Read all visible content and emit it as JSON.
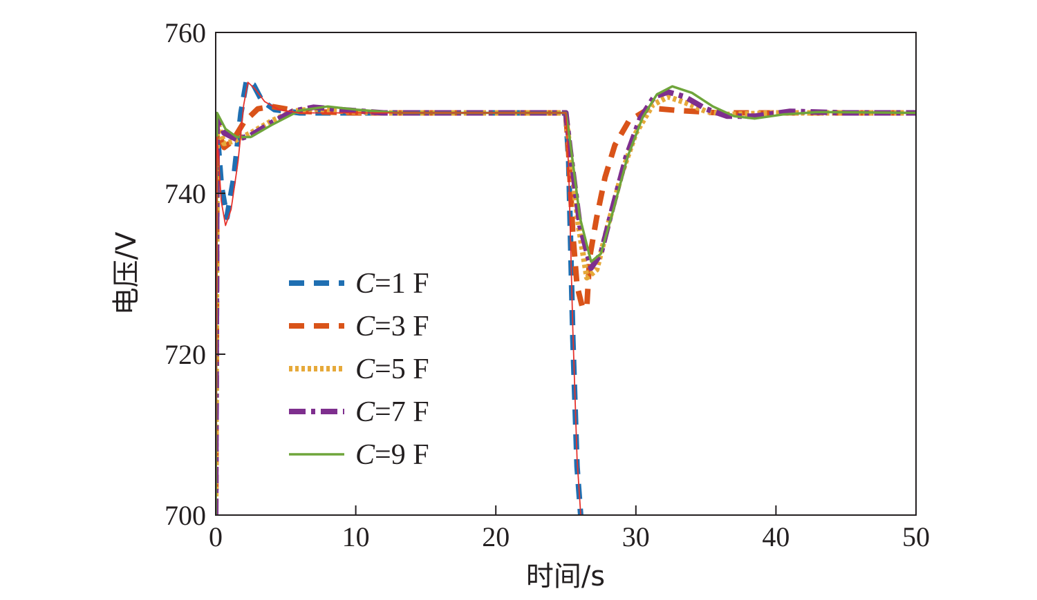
{
  "chart_data": {
    "type": "line",
    "xlabel": "时间/s",
    "ylabel": "电压/V",
    "xlim": [
      0,
      50
    ],
    "ylim": [
      700,
      760
    ],
    "xticks": [
      "0",
      "10",
      "20",
      "30",
      "40",
      "50"
    ],
    "yticks": [
      "700",
      "720",
      "740",
      "760"
    ],
    "grid": false,
    "legend_position": "center-left",
    "series": [
      {
        "name": "C=1 F",
        "name_var": "C",
        "name_rest": "=1 F",
        "color": "#1f6fb2",
        "style": "dashed",
        "points": [
          [
            0,
            700
          ],
          [
            0.1,
            748
          ],
          [
            0.4,
            741
          ],
          [
            0.8,
            737
          ],
          [
            1.3,
            742
          ],
          [
            1.8,
            750
          ],
          [
            2.2,
            754
          ],
          [
            2.7,
            753.5
          ],
          [
            3.3,
            751.5
          ],
          [
            4.2,
            750.4
          ],
          [
            6,
            750
          ],
          [
            10,
            750
          ],
          [
            25,
            750
          ],
          [
            25.2,
            744
          ],
          [
            25.5,
            722
          ],
          [
            25.8,
            706
          ],
          [
            26.1,
            699
          ]
        ]
      },
      {
        "name": "C=3 F",
        "name_var": "C",
        "name_rest": "=3 F",
        "color": "#d95319",
        "style": "dashed",
        "points": [
          [
            0,
            700
          ],
          [
            0.1,
            748
          ],
          [
            0.6,
            745.7
          ],
          [
            1.2,
            746.5
          ],
          [
            2,
            748.8
          ],
          [
            3,
            750.5
          ],
          [
            4,
            750.8
          ],
          [
            5,
            750.5
          ],
          [
            6,
            750.2
          ],
          [
            10,
            750
          ],
          [
            25,
            750
          ],
          [
            25.2,
            745
          ],
          [
            25.5,
            735
          ],
          [
            25.8,
            728.5
          ],
          [
            26.2,
            725.7
          ],
          [
            26.5,
            726
          ],
          [
            26.7,
            732
          ],
          [
            27.2,
            737
          ],
          [
            27.8,
            742
          ],
          [
            28.5,
            746
          ],
          [
            29.5,
            749
          ],
          [
            31,
            750.6
          ],
          [
            33,
            750.3
          ],
          [
            36,
            750
          ],
          [
            50,
            750
          ]
        ]
      },
      {
        "name": "C=5 F",
        "name_var": "C",
        "name_rest": "=5 F",
        "color": "#e6a93a",
        "style": "dotted",
        "points": [
          [
            0,
            700
          ],
          [
            0.1,
            749
          ],
          [
            0.6,
            746.2
          ],
          [
            1.3,
            746.5
          ],
          [
            2.5,
            747.5
          ],
          [
            4,
            749
          ],
          [
            5.5,
            750.2
          ],
          [
            7,
            750.5
          ],
          [
            9,
            750.2
          ],
          [
            12,
            750
          ],
          [
            25,
            750
          ],
          [
            25.3,
            745
          ],
          [
            25.9,
            736
          ],
          [
            26.5,
            729.5
          ],
          [
            27.2,
            730.5
          ],
          [
            28,
            736
          ],
          [
            29,
            742.5
          ],
          [
            30,
            747.5
          ],
          [
            31.2,
            751
          ],
          [
            32.3,
            752
          ],
          [
            33.5,
            751.3
          ],
          [
            35,
            750.2
          ],
          [
            36.5,
            749.8
          ],
          [
            40,
            750
          ],
          [
            50,
            750
          ]
        ]
      },
      {
        "name": "C=7 F",
        "name_var": "C",
        "name_rest": "=7 F",
        "color": "#7e2f8e",
        "style": "dashdot",
        "points": [
          [
            0,
            700
          ],
          [
            0.1,
            749.5
          ],
          [
            0.6,
            747.5
          ],
          [
            1.5,
            746.7
          ],
          [
            2.5,
            747.2
          ],
          [
            4,
            748.8
          ],
          [
            5.5,
            750.2
          ],
          [
            7,
            750.7
          ],
          [
            9,
            750.4
          ],
          [
            12,
            750
          ],
          [
            25,
            750
          ],
          [
            25.3,
            745.5
          ],
          [
            26,
            736
          ],
          [
            26.8,
            730.7
          ],
          [
            27.5,
            732.5
          ],
          [
            28.3,
            738
          ],
          [
            29.3,
            744.5
          ],
          [
            30.3,
            749.3
          ],
          [
            31.3,
            752
          ],
          [
            32.3,
            752.6
          ],
          [
            33.5,
            752
          ],
          [
            35,
            750.5
          ],
          [
            36.5,
            749.6
          ],
          [
            38.5,
            749.6
          ],
          [
            41,
            750.2
          ],
          [
            45,
            750
          ],
          [
            50,
            750
          ]
        ]
      },
      {
        "name": "C=9 F",
        "name_var": "C",
        "name_rest": "=9 F",
        "color": "#6fa53b",
        "style": "solid",
        "points": [
          [
            0,
            700
          ],
          [
            0.1,
            750
          ],
          [
            0.7,
            748
          ],
          [
            1.5,
            747
          ],
          [
            2.5,
            747
          ],
          [
            4,
            748.5
          ],
          [
            6,
            750.3
          ],
          [
            8,
            750.8
          ],
          [
            10,
            750.4
          ],
          [
            13,
            750
          ],
          [
            25,
            750
          ],
          [
            25.3,
            746.5
          ],
          [
            26,
            737
          ],
          [
            26.8,
            731.5
          ],
          [
            27.5,
            732.5
          ],
          [
            28.4,
            738
          ],
          [
            29.4,
            744.5
          ],
          [
            30.5,
            749.5
          ],
          [
            31.5,
            752.3
          ],
          [
            32.6,
            753.3
          ],
          [
            34,
            752.5
          ],
          [
            35.5,
            750.8
          ],
          [
            37,
            749.6
          ],
          [
            38.5,
            749.3
          ],
          [
            40.5,
            749.8
          ],
          [
            43,
            750.1
          ],
          [
            50,
            750
          ]
        ]
      },
      {
        "color": "#e6322b",
        "style": "thin",
        "points": [
          [
            0,
            700
          ],
          [
            0.1,
            747
          ],
          [
            0.4,
            739
          ],
          [
            0.7,
            736
          ],
          [
            1.1,
            738
          ],
          [
            1.6,
            744
          ],
          [
            2,
            751
          ],
          [
            2.3,
            753.8
          ],
          [
            2.8,
            753
          ],
          [
            3.5,
            751.4
          ],
          [
            4.5,
            750.4
          ],
          [
            6,
            750
          ],
          [
            10,
            750
          ],
          [
            25,
            750
          ],
          [
            25.2,
            743
          ],
          [
            25.5,
            723
          ],
          [
            25.8,
            707
          ],
          [
            26.1,
            699
          ]
        ]
      }
    ]
  }
}
